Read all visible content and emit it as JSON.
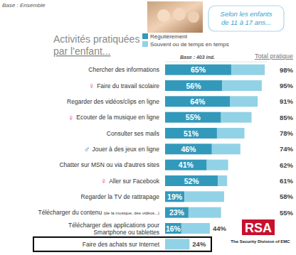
{
  "header": {
    "base": "Base : Ensemble",
    "source_note": "Selon les enfants\nde 11 à 17 ans..."
  },
  "chart_data": {
    "type": "bar",
    "orientation": "horizontal",
    "stacked": true,
    "data_labels": true,
    "tick_labels": "y",
    "grid": false,
    "legend": "top",
    "title": "Activités pratiquées\npar l'enfant...",
    "subtitle": "Base : 403 ind.",
    "categories": [
      "Chercher des informations",
      "Faire du travail scolaire",
      "Regarder des vidéos/clips en ligne",
      "Ecouter de la musique en ligne",
      "Consulter ses mails",
      "Jouer à des jeux en ligne",
      "Chatter sur MSN ou via d'autres sites",
      "Aller sur Facebook",
      "Regarder la TV de rattrapage",
      "Télécharger du contenu (de la musique, des vidéos...)",
      "Télécharger des applications pour\nSmartphone ou tablettes",
      "Faire des achats sur Internet"
    ],
    "category_symbols": [
      null,
      "♀",
      null,
      "♀",
      null,
      "♂",
      null,
      "♀",
      null,
      null,
      null,
      null
    ],
    "series": [
      {
        "name": "Régulièrement",
        "color": "#3399bb",
        "values": [
          65,
          56,
          64,
          55,
          51,
          46,
          41,
          52,
          19,
          23,
          16,
          null
        ],
        "value_labels": [
          "65%",
          "56%",
          "64%",
          "55%",
          "51%",
          "46%",
          "41%",
          "52%",
          "19%",
          "23%",
          "16%",
          null
        ]
      },
      {
        "name": "Souvent ou de temps en temps",
        "color": "#92d2e6",
        "values": [
          33,
          39,
          27,
          30,
          27,
          28,
          21,
          9,
          39,
          32,
          28,
          24
        ]
      }
    ],
    "totals": [
      98,
      95,
      91,
      85,
      78,
      74,
      62,
      61,
      58,
      55,
      44,
      24
    ],
    "total_labels": [
      "98%",
      "95%",
      "91%",
      "85%",
      "78%",
      "74%",
      "62%",
      "61%",
      "58%",
      "55%",
      "44%",
      "24%"
    ],
    "totals_title": "Total pratique",
    "xlim": [
      0,
      100
    ]
  },
  "logo": {
    "name": "RSA",
    "tagline": "The Security Division of EMC"
  }
}
